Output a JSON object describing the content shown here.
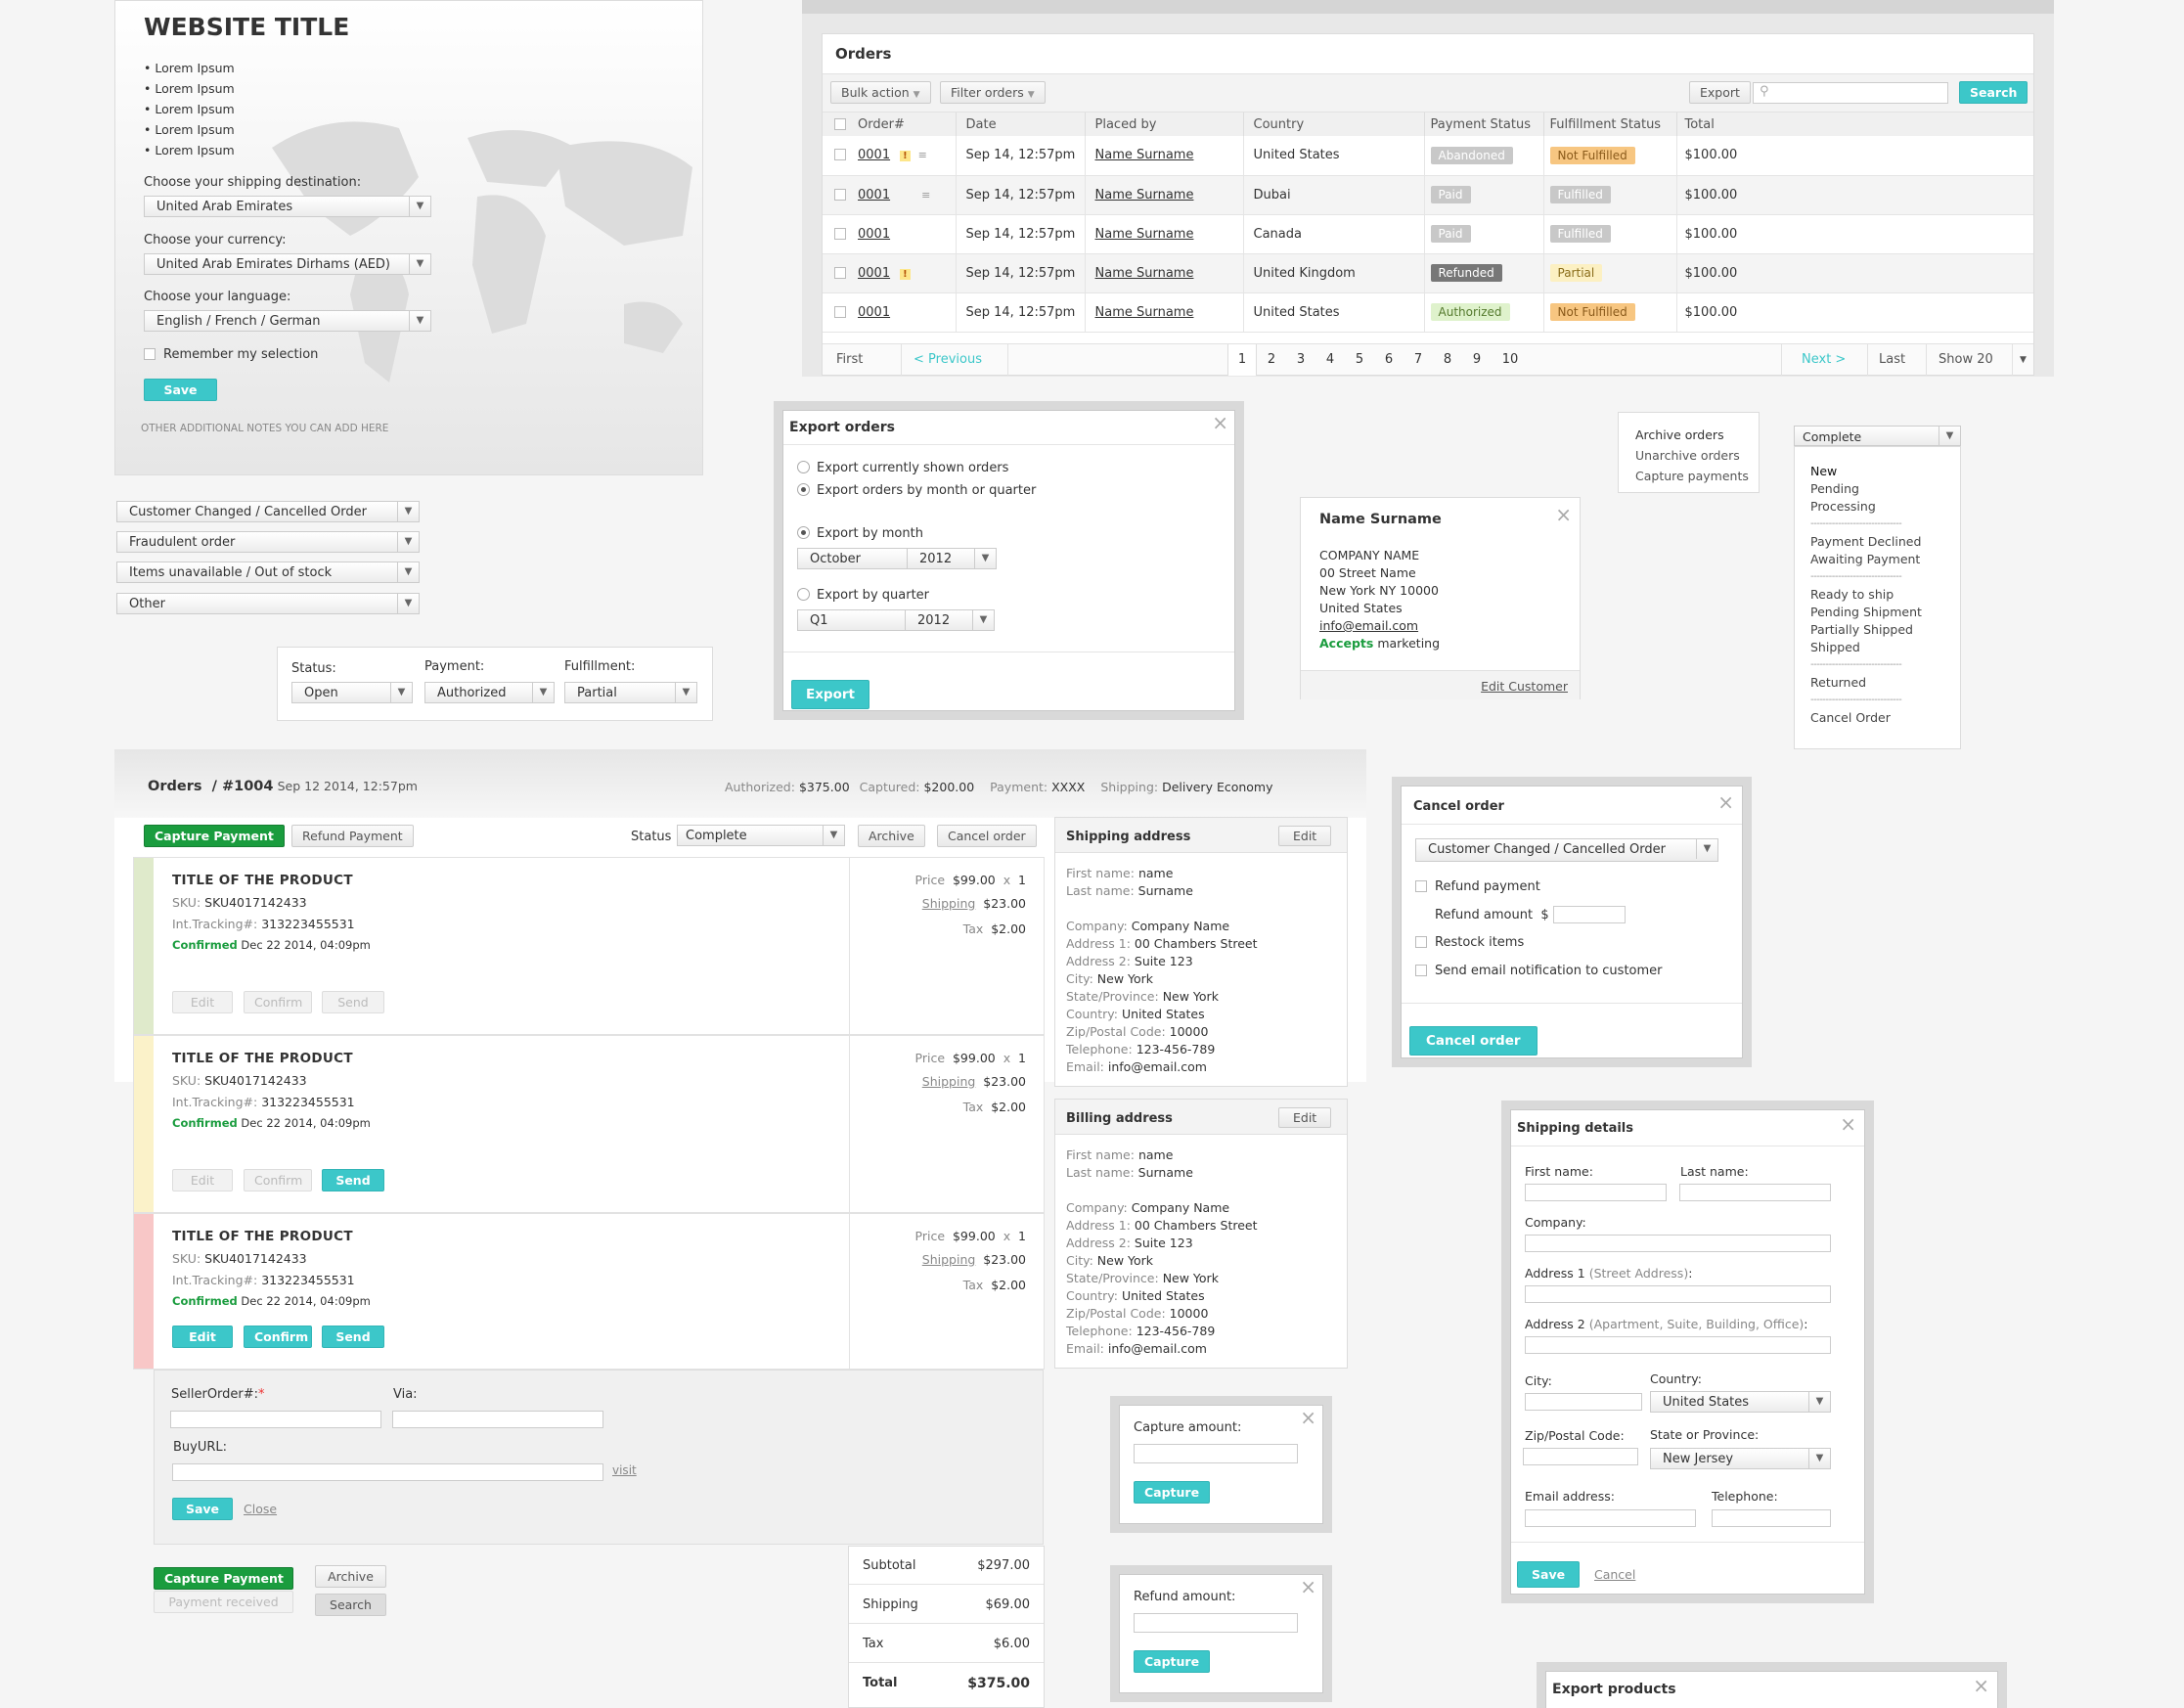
{
  "site": {
    "title": "WEBSITE TITLE",
    "bullets": [
      "Lorem Ipsum",
      "Lorem Ipsum",
      "Lorem Ipsum",
      "Lorem Ipsum",
      "Lorem Ipsum"
    ],
    "ship_label": "Choose your shipping destination:",
    "ship_value": "United Arab Emirates",
    "cur_label": "Choose your currency:",
    "cur_value": "United Arab Emirates Dirhams (AED)",
    "lang_label": "Choose your language:",
    "lang_value": "English / French / German",
    "remember": "Remember my selection",
    "save": "Save",
    "notes": "OTHER ADDITIONAL NOTES YOU CAN ADD HERE"
  },
  "reasons": [
    "Customer Changed / Cancelled Order",
    "Fraudulent order",
    "Items unavailable / Out of stock",
    "Other"
  ],
  "filters": {
    "status_label": "Status:",
    "status": "Open",
    "payment_label": "Payment:",
    "payment": "Authorized",
    "fulfill_label": "Fulfillment:",
    "fulfill": "Partial"
  },
  "orders": {
    "title": "Orders",
    "bulk": "Bulk action",
    "filter": "Filter orders",
    "export": "Export",
    "search": "Search",
    "cols": [
      "Order#",
      "Date",
      "Placed by",
      "Country",
      "Payment Status",
      "Fulfillment Status",
      "Total"
    ],
    "rows": [
      {
        "id": "0001",
        "date": "Sep 14, 12:57pm",
        "by": "Name Surname",
        "country": "United States",
        "pay": "Abandoned",
        "ful": "Not Fulfilled",
        "total": "$100.00"
      },
      {
        "id": "0001",
        "date": "Sep 14, 12:57pm",
        "by": "Name Surname",
        "country": "Dubai",
        "pay": "Paid",
        "ful": "Fulfilled",
        "total": "$100.00"
      },
      {
        "id": "0001",
        "date": "Sep 14, 12:57pm",
        "by": "Name Surname",
        "country": "Canada",
        "pay": "Paid",
        "ful": "Fulfilled",
        "total": "$100.00"
      },
      {
        "id": "0001",
        "date": "Sep 14, 12:57pm",
        "by": "Name Surname",
        "country": "United Kingdom",
        "pay": "Refunded",
        "ful": "Partial",
        "total": "$100.00"
      },
      {
        "id": "0001",
        "date": "Sep 14, 12:57pm",
        "by": "Name Surname",
        "country": "United States",
        "pay": "Authorized",
        "ful": "Not Fulfilled",
        "total": "$100.00"
      }
    ],
    "pager": {
      "first": "First",
      "prev": "< Previous",
      "pages": [
        "1",
        "2",
        "3",
        "4",
        "5",
        "6",
        "7",
        "8",
        "9",
        "10"
      ],
      "next": "Next >",
      "last": "Last",
      "show": "Show 20"
    }
  },
  "export_modal": {
    "title": "Export orders",
    "opt1": "Export currently shown orders",
    "opt2": "Export orders by month or quarter",
    "by_month": "Export by month",
    "month": "October",
    "year": "2012",
    "by_quarter": "Export by quarter",
    "quarter": "Q1",
    "qyear": "2012",
    "btn": "Export"
  },
  "customer": {
    "name": "Name Surname",
    "company": "COMPANY NAME",
    "street": "00 Street Name",
    "city": "New York NY 10000",
    "country": "United States",
    "email": "info@email.com",
    "accepts": "Accepts",
    "marketing": "marketing",
    "edit": "Edit Customer"
  },
  "menu": [
    "Archive orders",
    "Unarchive orders",
    "Capture payments"
  ],
  "status_dd": {
    "value": "Complete",
    "groups": [
      [
        "New",
        "Pending",
        "Processing"
      ],
      [
        "Payment Declined",
        "Awaiting Payment"
      ],
      [
        "Ready to ship",
        "Pending Shipment",
        "Partially Shipped",
        "Shipped"
      ],
      [
        "Returned"
      ],
      [
        "Cancel Order"
      ]
    ],
    "sep": "------------------------------"
  },
  "detail": {
    "crumb": "Orders",
    "num": "/ #1004",
    "date": "Sep 12 2014, 12:57pm",
    "auth_l": "Authorized:",
    "auth": "$375.00",
    "cap_l": "Captured:",
    "cap": "$200.00",
    "pay_l": "Payment:",
    "pay": "XXXX",
    "ship_l": "Shipping:",
    "ship": "Delivery Economy",
    "capture": "Capture Payment",
    "refund": "Refund Payment",
    "status_l": "Status",
    "status": "Complete",
    "archive": "Archive",
    "cancel": "Cancel order",
    "product": {
      "title": "TITLE OF THE PRODUCT",
      "sku_l": "SKU:",
      "sku": "SKU4017142433",
      "trk_l": "Int.Tracking#:",
      "trk": "313223455531",
      "conf": "Confirmed",
      "conf_date": "Dec 22 2014, 04:09pm",
      "price_l": "Price",
      "price": "$99.00",
      "qty": "1",
      "x": "x",
      "ship_l": "Shipping",
      "ship": "$23.00",
      "tax_l": "Tax",
      "tax": "$2.00",
      "edit": "Edit",
      "confirm": "Confirm",
      "send": "Send"
    },
    "seller_l": "SellerOrder#:",
    "star": "*",
    "via_l": "Via:",
    "buy_l": "BuyURL:",
    "visit": "visit",
    "save": "Save",
    "close": "Close",
    "received": "Payment received",
    "search": "Search",
    "totals": [
      {
        "l": "Subtotal",
        "v": "$297.00"
      },
      {
        "l": "Shipping",
        "v": "$69.00"
      },
      {
        "l": "Tax",
        "v": "$6.00"
      },
      {
        "l": "Total",
        "v": "$375.00"
      }
    ]
  },
  "addr": {
    "ship_title": "Shipping address",
    "bill_title": "Billing address",
    "edit": "Edit",
    "lines": [
      [
        "First name:",
        "name"
      ],
      [
        "Last name:",
        "Surname"
      ],
      [
        "",
        ""
      ],
      [
        "Company:",
        "Company Name"
      ],
      [
        "Address 1:",
        "00 Chambers Street"
      ],
      [
        "Address 2:",
        "Suite 123"
      ],
      [
        "City:",
        "New York"
      ],
      [
        "State/Province:",
        "New York"
      ],
      [
        "Country:",
        "United States"
      ],
      [
        "Zip/Postal Code:",
        "10000"
      ],
      [
        "Telephone:",
        "123-456-789"
      ],
      [
        "Email:",
        "info@email.com"
      ]
    ]
  },
  "cancel_modal": {
    "title": "Cancel order",
    "reason": "Customer Changed / Cancelled Order",
    "refund": "Refund payment",
    "amount": "Refund amount",
    "dollar": "$",
    "restock": "Restock items",
    "notify": "Send email notification to customer",
    "btn": "Cancel order"
  },
  "capture_modal": {
    "label": "Capture amount:",
    "btn": "Capture"
  },
  "refund_modal": {
    "label": "Refund amount:",
    "btn": "Capture"
  },
  "ship_modal": {
    "title": "Shipping details",
    "first": "First name:",
    "last": "Last name:",
    "company": "Company:",
    "a1": "Address 1",
    "a1h": "(Street Address)",
    "a2": "Address 2",
    "a2h": "(Apartment, Suite, Building, Office)",
    "colon": ":",
    "city": "City:",
    "country": "Country:",
    "country_v": "United States",
    "zip": "Zip/Postal Code:",
    "state": "State or Province:",
    "state_v": "New Jersey",
    "email": "Email address:",
    "tel": "Telephone:",
    "save": "Save",
    "cancel": "Cancel"
  },
  "export_products": {
    "title": "Export products"
  }
}
